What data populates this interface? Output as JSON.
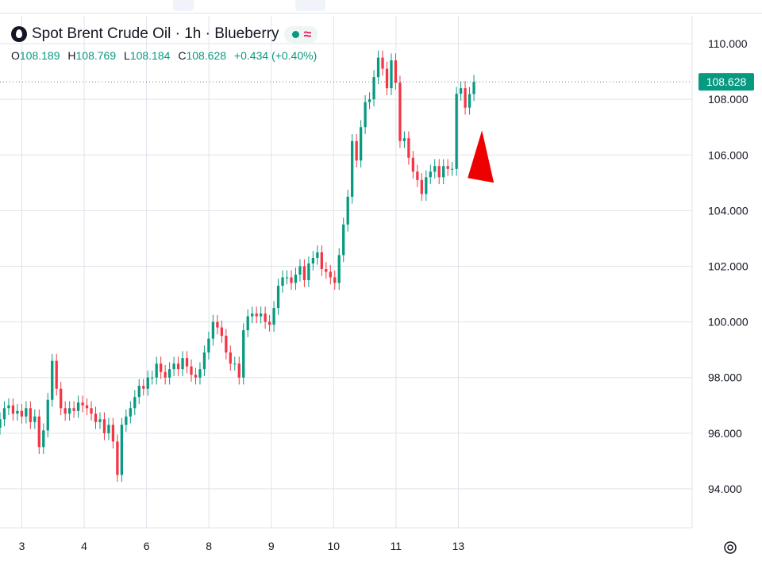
{
  "legend": {
    "title": "Spot Brent Crude Oil · 1h · Blueberry",
    "o_label": "O",
    "o_value": "108.189",
    "h_label": "H",
    "h_value": "108.769",
    "l_label": "L",
    "l_value": "108.184",
    "c_label": "C",
    "c_value": "108.628",
    "change": "+0.434 (+0.40%)"
  },
  "colors": {
    "up": "#089981",
    "down": "#f23645",
    "grid": "#e0e3eb",
    "price_label_bg": "#089981",
    "arrow": "#ee0000",
    "text": "#131722"
  },
  "icons": [
    "logo-drop-icon",
    "market-status-dot-icon",
    "wave-icon",
    "settings-icon"
  ],
  "chart_data": {
    "type": "candlestick",
    "symbol": "Spot Brent Crude Oil",
    "interval": "1h",
    "source": "Blueberry",
    "ylim": [
      92.6,
      111.0
    ],
    "x_range": [
      2.65,
      13.75
    ],
    "grid": true,
    "y_ticks": [
      "94.000",
      "96.000",
      "98.000",
      "100.000",
      "102.000",
      "104.000",
      "106.000",
      "108.000",
      "110.000"
    ],
    "x_ticks": [
      {
        "label": "3",
        "x": 3
      },
      {
        "label": "4",
        "x": 4
      },
      {
        "label": "6",
        "x": 5
      },
      {
        "label": "8",
        "x": 6
      },
      {
        "label": "9",
        "x": 7
      },
      {
        "label": "10",
        "x": 8
      },
      {
        "label": "11",
        "x": 9
      },
      {
        "label": "13",
        "x": 10
      }
    ],
    "last_price": "108.628",
    "last_price_value": 108.628,
    "annotation": {
      "type": "triangle",
      "color": "#ee0000",
      "position": "right of last candles near 105.5"
    },
    "closes": [
      96.5,
      96.9,
      97.0,
      96.7,
      96.8,
      96.6,
      96.9,
      96.4,
      96.6,
      95.5,
      96.1,
      97.2,
      98.6,
      97.6,
      96.9,
      96.7,
      96.9,
      96.8,
      97.1,
      97.0,
      96.9,
      96.7,
      96.4,
      96.5,
      96.0,
      96.3,
      95.7,
      94.5,
      96.3,
      96.6,
      96.9,
      97.3,
      97.7,
      97.6,
      98.0,
      98.0,
      98.5,
      98.2,
      98.0,
      98.3,
      98.5,
      98.3,
      98.7,
      98.4,
      98.1,
      98.0,
      98.3,
      98.9,
      99.4,
      100.0,
      99.8,
      99.5,
      98.9,
      98.5,
      98.5,
      98.0,
      99.7,
      100.2,
      100.3,
      100.2,
      100.3,
      100.0,
      99.9,
      100.5,
      101.3,
      101.6,
      101.6,
      101.4,
      101.7,
      102.0,
      101.5,
      102.1,
      102.3,
      102.5,
      101.9,
      101.8,
      101.6,
      101.4,
      102.4,
      103.5,
      104.5,
      106.5,
      105.8,
      107.0,
      107.9,
      108.0,
      108.8,
      109.5,
      109.1,
      108.4,
      109.4,
      108.6,
      106.5,
      106.6,
      105.9,
      105.4,
      105.1,
      104.6,
      105.2,
      105.4,
      105.6,
      105.2,
      105.6,
      105.5,
      105.5,
      108.2,
      108.4,
      107.7,
      108.189,
      108.628
    ]
  }
}
